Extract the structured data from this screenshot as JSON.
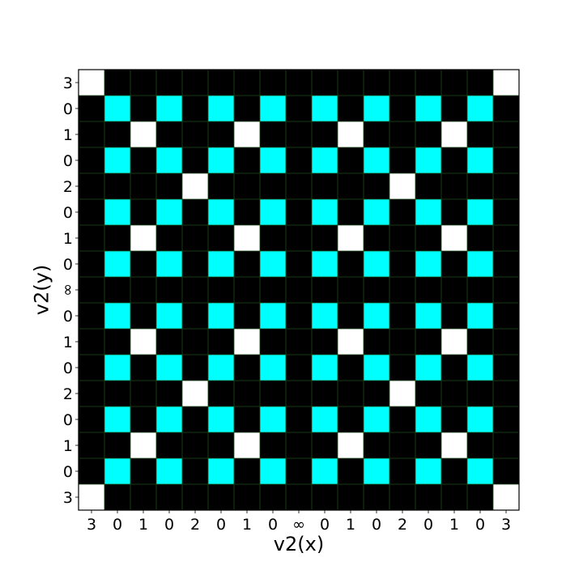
{
  "chart_data": {
    "type": "heatmap",
    "title": "",
    "xlabel": "v2(x)",
    "ylabel": "v2(y)",
    "x_ticks": [
      "3",
      "0",
      "1",
      "0",
      "2",
      "0",
      "1",
      "0",
      "∞",
      "0",
      "1",
      "0",
      "2",
      "0",
      "1",
      "0",
      "3"
    ],
    "y_ticks_top_to_bottom": [
      "3",
      "0",
      "1",
      "0",
      "2",
      "0",
      "1",
      "0",
      "∞",
      "0",
      "1",
      "0",
      "2",
      "0",
      "1",
      "0",
      "3"
    ],
    "grid": true,
    "legend": "none",
    "colors": {
      "0": "#000000",
      "1": "#00ffff",
      "2": "#ffffff",
      "grid": "#1a4d1a",
      "frame": "#000000"
    },
    "values_top_to_bottom": [
      [
        2,
        0,
        0,
        0,
        0,
        0,
        0,
        0,
        0,
        0,
        0,
        0,
        0,
        0,
        0,
        0,
        2
      ],
      [
        0,
        1,
        0,
        1,
        0,
        1,
        0,
        1,
        0,
        1,
        0,
        1,
        0,
        1,
        0,
        1,
        0
      ],
      [
        0,
        0,
        2,
        0,
        0,
        0,
        2,
        0,
        0,
        0,
        2,
        0,
        0,
        0,
        2,
        0,
        0
      ],
      [
        0,
        1,
        0,
        1,
        0,
        1,
        0,
        1,
        0,
        1,
        0,
        1,
        0,
        1,
        0,
        1,
        0
      ],
      [
        0,
        0,
        0,
        0,
        2,
        0,
        0,
        0,
        0,
        0,
        0,
        0,
        2,
        0,
        0,
        0,
        0
      ],
      [
        0,
        1,
        0,
        1,
        0,
        1,
        0,
        1,
        0,
        1,
        0,
        1,
        0,
        1,
        0,
        1,
        0
      ],
      [
        0,
        0,
        2,
        0,
        0,
        0,
        2,
        0,
        0,
        0,
        2,
        0,
        0,
        0,
        2,
        0,
        0
      ],
      [
        0,
        1,
        0,
        1,
        0,
        1,
        0,
        1,
        0,
        1,
        0,
        1,
        0,
        1,
        0,
        1,
        0
      ],
      [
        0,
        0,
        0,
        0,
        0,
        0,
        0,
        0,
        0,
        0,
        0,
        0,
        0,
        0,
        0,
        0,
        0
      ],
      [
        0,
        1,
        0,
        1,
        0,
        1,
        0,
        1,
        0,
        1,
        0,
        1,
        0,
        1,
        0,
        1,
        0
      ],
      [
        0,
        0,
        2,
        0,
        0,
        0,
        2,
        0,
        0,
        0,
        2,
        0,
        0,
        0,
        2,
        0,
        0
      ],
      [
        0,
        1,
        0,
        1,
        0,
        1,
        0,
        1,
        0,
        1,
        0,
        1,
        0,
        1,
        0,
        1,
        0
      ],
      [
        0,
        0,
        0,
        0,
        2,
        0,
        0,
        0,
        0,
        0,
        0,
        0,
        2,
        0,
        0,
        0,
        0
      ],
      [
        0,
        1,
        0,
        1,
        0,
        1,
        0,
        1,
        0,
        1,
        0,
        1,
        0,
        1,
        0,
        1,
        0
      ],
      [
        0,
        0,
        2,
        0,
        0,
        0,
        2,
        0,
        0,
        0,
        2,
        0,
        0,
        0,
        2,
        0,
        0
      ],
      [
        0,
        1,
        0,
        1,
        0,
        1,
        0,
        1,
        0,
        1,
        0,
        1,
        0,
        1,
        0,
        1,
        0
      ],
      [
        2,
        0,
        0,
        0,
        0,
        0,
        0,
        0,
        0,
        0,
        0,
        0,
        0,
        0,
        0,
        0,
        2
      ]
    ]
  }
}
